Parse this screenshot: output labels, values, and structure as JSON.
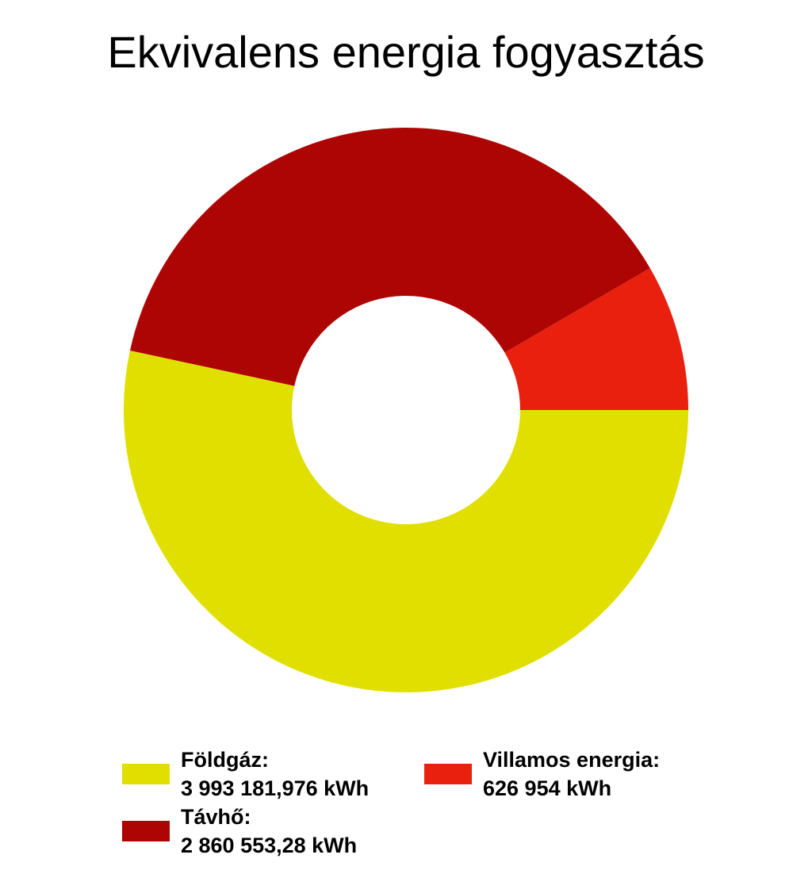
{
  "chart_data": {
    "type": "pie",
    "variant": "donut",
    "title": "Ekvivalens energia fogyasztás",
    "unit": "kWh",
    "series": [
      {
        "name": "Földgáz",
        "legend_label": "Földgáz:",
        "value": 3993181.976,
        "value_label": "3 993 181,976 kWh",
        "color": "#e0df00"
      },
      {
        "name": "Távhő",
        "legend_label": "Távhő:",
        "value": 2860553.28,
        "value_label": "2 860 553,28 kWh",
        "color": "#ad0503"
      },
      {
        "name": "Villamos energia",
        "legend_label": "Villamos energia:",
        "value": 626954,
        "value_label": "626 954 kWh",
        "color": "#e8200d"
      }
    ],
    "legend_position": "bottom"
  }
}
